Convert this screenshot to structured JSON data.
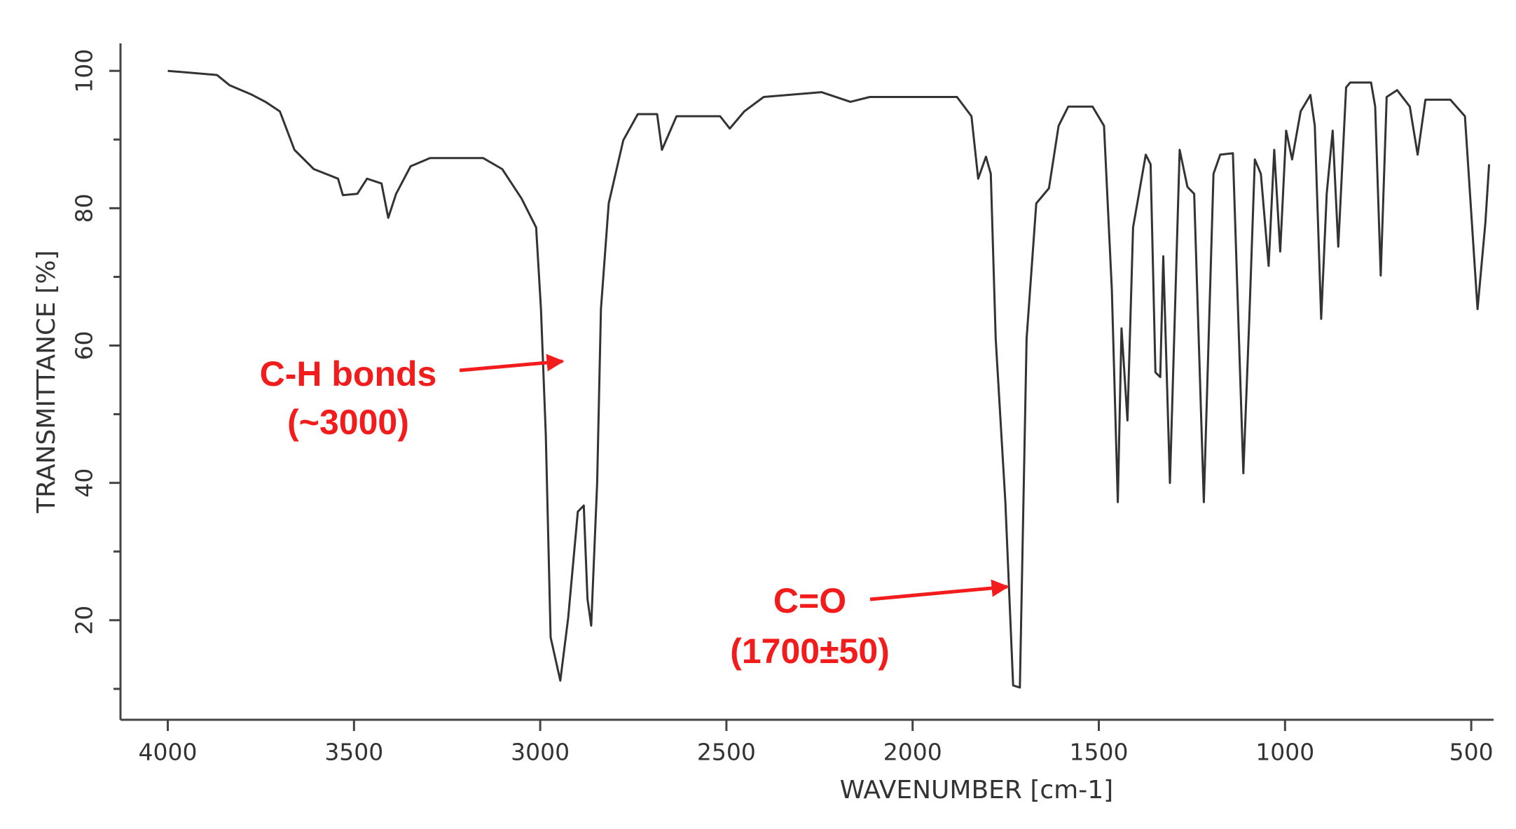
{
  "chart_data": {
    "type": "line",
    "x_label": "WAVENUMBER [cm-1]",
    "y_label": "TRANSMITTANCE [%]",
    "x": [
      4000,
      3868,
      3834,
      3777,
      3738,
      3699,
      3660,
      3608,
      3543,
      3530,
      3491,
      3465,
      3426,
      3408,
      3387,
      3348,
      3296,
      3153,
      3102,
      3050,
      3011,
      2998,
      2985,
      2972,
      2946,
      2925,
      2899,
      2883,
      2873,
      2863,
      2847,
      2837,
      2816,
      2777,
      2738,
      2686,
      2673,
      2634,
      2517,
      2491,
      2452,
      2400,
      2245,
      2167,
      2115,
      1881,
      1842,
      1824,
      1803,
      1790,
      1777,
      1751,
      1730,
      1712,
      1694,
      1668,
      1634,
      1608,
      1582,
      1517,
      1486,
      1465,
      1449,
      1439,
      1423,
      1408,
      1374,
      1361,
      1348,
      1335,
      1327,
      1309,
      1283,
      1262,
      1244,
      1218,
      1192,
      1174,
      1140,
      1112,
      1096,
      1081,
      1065,
      1044,
      1029,
      1013,
      997,
      981,
      958,
      932,
      920,
      903,
      888,
      872,
      857,
      836,
      825,
      769,
      758,
      743,
      727,
      699,
      665,
      644,
      623,
      556,
      517,
      483,
      462,
      452
    ],
    "values": [
      100,
      99.4,
      97.9,
      96.6,
      95.5,
      94.1,
      88.5,
      85.7,
      84.3,
      81.9,
      82.1,
      84.3,
      83.6,
      78.6,
      82.1,
      86.1,
      87.3,
      87.3,
      85.7,
      81.4,
      77.2,
      65.3,
      47,
      17.5,
      11.2,
      20.3,
      35.8,
      36.7,
      23.1,
      19.2,
      40,
      65.3,
      80.7,
      89.9,
      93.7,
      93.7,
      88.5,
      93.4,
      93.4,
      91.6,
      94.1,
      96.2,
      96.9,
      95.5,
      96.2,
      96.2,
      93.4,
      84.3,
      87.5,
      85,
      61,
      37.2,
      10.5,
      10.2,
      61,
      80.7,
      82.9,
      92,
      94.8,
      94.8,
      92,
      68.1,
      37.2,
      62.5,
      49.1,
      77.2,
      87.8,
      86.4,
      56.1,
      55.4,
      73,
      40,
      88.5,
      83.1,
      82.1,
      37.2,
      85,
      87.8,
      88,
      41.4,
      63.9,
      87.1,
      85,
      71.6,
      88.5,
      73.7,
      91.3,
      87.1,
      94.1,
      96.5,
      92,
      63.9,
      82.1,
      91.3,
      74.4,
      97.6,
      98.3,
      98.3,
      94.8,
      70.2,
      96.2,
      97.2,
      94.8,
      87.8,
      95.8,
      95.8,
      93.4,
      65.3,
      77.9,
      86.4
    ],
    "color": "#333333",
    "xlim": [
      4127,
      440
    ],
    "xticks": [
      4000,
      3500,
      3000,
      2500,
      2000,
      1500,
      1000,
      500
    ],
    "ylim": [
      5.5,
      104
    ],
    "yticks": [
      20,
      40,
      60,
      80,
      100
    ],
    "yminorticks": [
      10,
      30,
      50,
      70,
      90
    ],
    "annotations": [
      {
        "lines": [
          "C-H bonds",
          "(~3000)"
        ],
        "color": "#f21c1c"
      },
      {
        "lines": [
          "C=O",
          "(1700±50)"
        ],
        "color": "#f21c1c"
      }
    ]
  }
}
